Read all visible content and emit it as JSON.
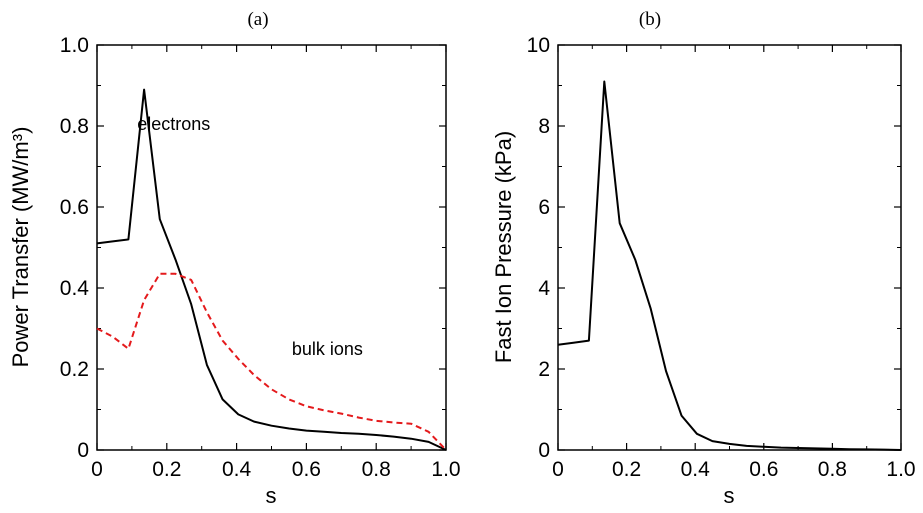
{
  "chart_data": [
    {
      "type": "line",
      "panel_label": "(a)",
      "xlabel": "s",
      "ylabel": "Power Transfer (MW/m³)",
      "xlim": [
        0,
        1.0
      ],
      "ylim": [
        0,
        1.0
      ],
      "xticks": [
        0,
        0.2,
        0.4,
        0.6,
        0.8,
        1.0
      ],
      "xtick_labels": [
        "0",
        "0.2",
        "0.4",
        "0.6",
        "0.8",
        "1.0"
      ],
      "yticks": [
        0,
        0.2,
        0.4,
        0.6,
        0.8,
        1.0
      ],
      "ytick_labels": [
        "0",
        "0.2",
        "0.4",
        "0.6",
        "0.8",
        "1.0"
      ],
      "grid": false,
      "series": [
        {
          "name": "electrons",
          "color": "#000000",
          "dash": "solid",
          "x": [
            0,
            0.045,
            0.09,
            0.135,
            0.18,
            0.225,
            0.27,
            0.315,
            0.36,
            0.405,
            0.45,
            0.5,
            0.55,
            0.6,
            0.65,
            0.7,
            0.75,
            0.8,
            0.85,
            0.9,
            0.95,
            1.0
          ],
          "y": [
            0.51,
            0.515,
            0.52,
            0.89,
            0.57,
            0.47,
            0.36,
            0.21,
            0.125,
            0.088,
            0.07,
            0.06,
            0.053,
            0.048,
            0.045,
            0.042,
            0.04,
            0.037,
            0.033,
            0.028,
            0.02,
            0.0
          ]
        },
        {
          "name": "bulk ions",
          "color": "#e41a1c",
          "dash": "dashed",
          "x": [
            0,
            0.045,
            0.09,
            0.135,
            0.18,
            0.225,
            0.27,
            0.315,
            0.36,
            0.405,
            0.45,
            0.5,
            0.55,
            0.6,
            0.65,
            0.7,
            0.75,
            0.8,
            0.85,
            0.9,
            0.95,
            1.0
          ],
          "y": [
            0.3,
            0.28,
            0.25,
            0.37,
            0.435,
            0.435,
            0.42,
            0.34,
            0.27,
            0.225,
            0.185,
            0.15,
            0.125,
            0.108,
            0.098,
            0.09,
            0.08,
            0.072,
            0.068,
            0.065,
            0.045,
            0.0
          ]
        }
      ],
      "annotations": [
        {
          "text": "electrons",
          "x": 0.22,
          "y": 0.79
        },
        {
          "text": "bulk ions",
          "x": 0.66,
          "y": 0.235
        }
      ]
    },
    {
      "type": "line",
      "panel_label": "(b)",
      "xlabel": "s",
      "ylabel": "Fast Ion Pressure (kPa)",
      "xlim": [
        0,
        1.0
      ],
      "ylim": [
        0,
        10
      ],
      "xticks": [
        0,
        0.2,
        0.4,
        0.6,
        0.8,
        1.0
      ],
      "xtick_labels": [
        "0",
        "0.2",
        "0.4",
        "0.6",
        "0.8",
        "1.0"
      ],
      "yticks": [
        0,
        2,
        4,
        6,
        8,
        10
      ],
      "ytick_labels": [
        "0",
        "2",
        "4",
        "6",
        "8",
        "10"
      ],
      "grid": false,
      "series": [
        {
          "color": "#000000",
          "dash": "solid",
          "x": [
            0,
            0.045,
            0.09,
            0.135,
            0.18,
            0.225,
            0.27,
            0.315,
            0.36,
            0.405,
            0.45,
            0.5,
            0.55,
            0.6,
            0.65,
            0.7,
            0.75,
            0.8,
            0.85,
            0.9,
            0.95,
            1.0
          ],
          "y": [
            2.6,
            2.65,
            2.7,
            9.1,
            5.6,
            4.7,
            3.5,
            1.95,
            0.85,
            0.4,
            0.22,
            0.15,
            0.1,
            0.08,
            0.06,
            0.05,
            0.04,
            0.03,
            0.02,
            0.015,
            0.01,
            0.0
          ]
        }
      ]
    }
  ]
}
